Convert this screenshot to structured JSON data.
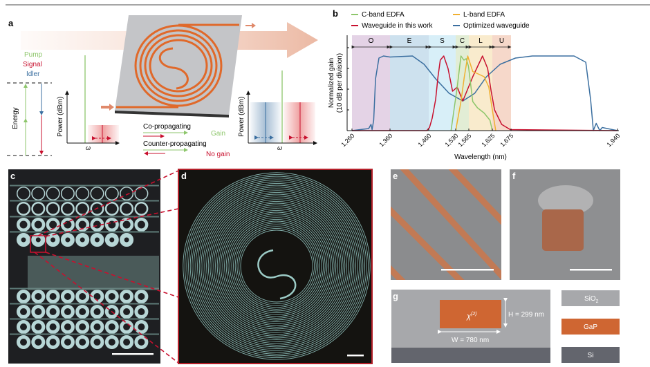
{
  "colors": {
    "pump": "#8dc66b",
    "signal": "#c8102e",
    "idler": "#3b6fa0",
    "gap": "#cf6632",
    "sio2": "#a7a8ab",
    "si": "#63656d",
    "chip": "#c4c5c8"
  },
  "panel_a": {
    "label": "a",
    "legend": {
      "pump": "Pump",
      "signal": "Signal",
      "idler": "Idler"
    },
    "energy_label": "Energy",
    "left_plot": {
      "ylabel": "Power (dBm)",
      "xlabel": "ω"
    },
    "right_plot": {
      "ylabel": "Power (dBm)",
      "xlabel": "ω"
    },
    "co_propagating": "Co-propagating",
    "counter_propagating": "Counter-propagating",
    "gain": "Gain",
    "no_gain": "No gain"
  },
  "panel_b": {
    "label": "b"
  },
  "chart_data": {
    "type": "line",
    "xlabel": "Wavelength (nm)",
    "ylabel": [
      "Normalized gain",
      "(10 dB per division)"
    ],
    "xticks": [
      1260,
      1360,
      1460,
      1530,
      1565,
      1625,
      1675,
      1940
    ],
    "xtick_labels": [
      "1,260",
      "1,360",
      "1,460",
      "1,530",
      "1,565",
      "1,625",
      "1,675",
      "1,940"
    ],
    "xlim": [
      1260,
      1940
    ],
    "ylim": [
      0,
      4.6
    ],
    "yticks": [
      1,
      2,
      3,
      4
    ],
    "grid": false,
    "legend_placement": "top",
    "bands": [
      {
        "name": "O",
        "from": 1260,
        "to": 1360,
        "color": "#e4d3e6"
      },
      {
        "name": "E",
        "from": 1360,
        "to": 1460,
        "color": "#cde1ee"
      },
      {
        "name": "S",
        "from": 1460,
        "to": 1530,
        "color": "#d8eff8"
      },
      {
        "name": "C",
        "from": 1530,
        "to": 1565,
        "color": "#e2edd5"
      },
      {
        "name": "L",
        "from": 1565,
        "to": 1625,
        "color": "#f9ebcd"
      },
      {
        "name": "U",
        "from": 1625,
        "to": 1675,
        "color": "#f6d8ca"
      }
    ],
    "series": [
      {
        "name": "C-band EDFA",
        "color": "#8dc66b",
        "x": [
          1518,
          1534,
          1544,
          1552,
          1558,
          1564,
          1575,
          1587,
          1604,
          1619,
          1625
        ],
        "y": [
          0,
          2.1,
          3.6,
          3.4,
          3.47,
          3.1,
          1.4,
          1.1,
          0.85,
          0.5,
          0
        ]
      },
      {
        "name": "L-band EDFA",
        "color": "#f0b030",
        "x": [
          1530,
          1544,
          1553,
          1562,
          1575,
          1587,
          1604,
          1616,
          1625,
          1634
        ],
        "y": [
          0,
          1.4,
          2.6,
          3.6,
          2.85,
          2.75,
          2.6,
          2.1,
          1.0,
          0
        ]
      },
      {
        "name": "Waveguide in this work",
        "color": "#c8102e",
        "x": [
          1260,
          1455,
          1462,
          1469,
          1478,
          1484,
          1490,
          1499,
          1510,
          1522,
          1534,
          1549,
          1575,
          1600,
          1613,
          1622,
          1631,
          1650,
          1673,
          1940
        ],
        "y": [
          0,
          0,
          0.15,
          0.6,
          1.5,
          2.6,
          3.4,
          3.6,
          3.0,
          1.9,
          2.1,
          1.43,
          2.6,
          3.6,
          3.0,
          1.9,
          1.0,
          0.3,
          0.05,
          0
        ]
      },
      {
        "name": "Optimized waveguide",
        "color": "#3b6fa0",
        "x": [
          1260,
          1304,
          1310,
          1313,
          1317,
          1322,
          1331,
          1343,
          1360,
          1418,
          1448,
          1478,
          1513,
          1549,
          1580,
          1610,
          1646,
          1686,
          1728,
          1832,
          1861,
          1873,
          1880,
          1887,
          1896,
          1902,
          1940
        ],
        "y": [
          0,
          0.1,
          0.3,
          0.05,
          0.5,
          2.5,
          3.5,
          3.6,
          3.55,
          3.6,
          3.2,
          2.5,
          1.8,
          1.43,
          1.8,
          2.6,
          3.2,
          3.5,
          3.6,
          3.6,
          3.3,
          1.5,
          0,
          0.35,
          0,
          0.15,
          0
        ]
      }
    ]
  },
  "panel_c": {
    "label": "c"
  },
  "panel_d": {
    "label": "d"
  },
  "panel_e": {
    "label": "e"
  },
  "panel_f": {
    "label": "f"
  },
  "panel_g": {
    "label": "g",
    "chi": "χ",
    "chi_sup": "(2)",
    "height_label": "H = 299 nm",
    "width_label": "W = 780 nm",
    "legend": {
      "sio2": "SiO",
      "sio2_sub": "2",
      "gap": "GaP",
      "si": "Si"
    }
  }
}
